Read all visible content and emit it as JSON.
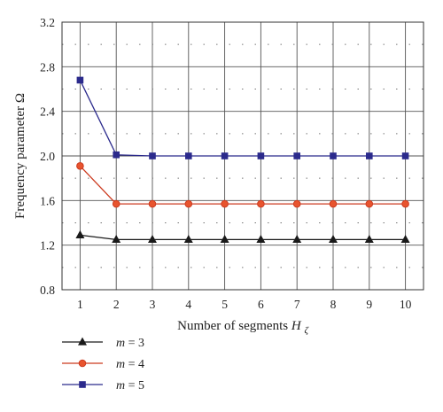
{
  "chart_data": {
    "type": "line",
    "xlabel": "Number of segments",
    "xlabel_symbol": "H",
    "xlabel_subscript": "ζ",
    "ylabel": "Frequency parameter Ω",
    "x": [
      1,
      2,
      3,
      4,
      5,
      6,
      7,
      8,
      9,
      10
    ],
    "xlim": [
      0.5,
      10.5
    ],
    "ylim": [
      0.8,
      3.2
    ],
    "xticks": [
      "1",
      "2",
      "3",
      "4",
      "5",
      "6",
      "7",
      "8",
      "9",
      "10"
    ],
    "yticks": [
      "0.8",
      "1.2",
      "1.6",
      "2.0",
      "2.4",
      "2.8",
      "3.2"
    ],
    "ytick_values": [
      0.8,
      1.2,
      1.6,
      2.0,
      2.4,
      2.8,
      3.2
    ],
    "grid": true,
    "legend_position": "bottom-left",
    "series": [
      {
        "name": "m = 3",
        "name_var": "m",
        "name_rest": " = 3",
        "marker": "triangle",
        "color": "#1a1a1a",
        "marker_fill": "#1a1a1a",
        "values": [
          1.29,
          1.25,
          1.25,
          1.25,
          1.25,
          1.25,
          1.25,
          1.25,
          1.25,
          1.25
        ]
      },
      {
        "name": "m = 4",
        "name_var": "m",
        "name_rest": " = 4",
        "marker": "circle",
        "color": "#cc3a1f",
        "marker_fill": "#e8542e",
        "values": [
          1.91,
          1.57,
          1.57,
          1.57,
          1.57,
          1.57,
          1.57,
          1.57,
          1.57,
          1.57
        ]
      },
      {
        "name": "m = 5",
        "name_var": "m",
        "name_rest": " = 5",
        "marker": "square",
        "color": "#2b2a8c",
        "marker_fill": "#2b2a8c",
        "values": [
          2.68,
          2.01,
          2.0,
          2.0,
          2.0,
          2.0,
          2.0,
          2.0,
          2.0,
          2.0
        ]
      }
    ]
  }
}
